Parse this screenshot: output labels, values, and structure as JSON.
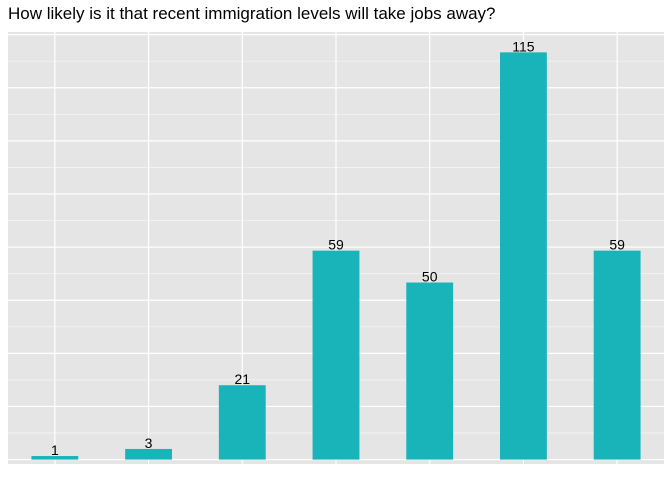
{
  "chart_data": {
    "type": "bar",
    "title": "How likely is it that recent immigration levels will take jobs away?",
    "categories": [
      "",
      "",
      "",
      "",
      "",
      "",
      ""
    ],
    "values": [
      1,
      3,
      21,
      59,
      50,
      115,
      59
    ],
    "data_labels": [
      "1",
      "3",
      "21",
      "59",
      "50",
      "115",
      "59"
    ],
    "xlabel": "",
    "ylabel": "",
    "ylim": [
      -1.25,
      120.75
    ],
    "y_gridlines": [
      0,
      15,
      30,
      45,
      60,
      75,
      90,
      105,
      120
    ],
    "grid": true,
    "legend": "none",
    "colors": {
      "bar": "#19B4B9",
      "panel": "#E5E5E5",
      "grid_major": "#FFFFFF",
      "grid_minor": "#F2F2F2",
      "text": "#000000"
    }
  }
}
